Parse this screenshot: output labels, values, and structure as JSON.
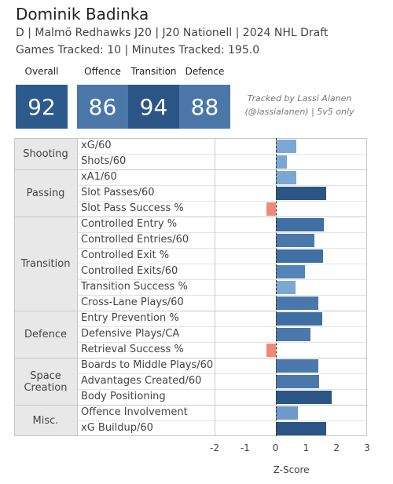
{
  "header": {
    "title": "Dominik Badinka",
    "subtitle": "D | Malmö Redhawks J20 | J20 Nationell | 2024 NHL Draft",
    "tracking": "Games Tracked: 10 | Minutes Tracked: 195.0"
  },
  "scores": [
    {
      "label": "Overall",
      "value": "92",
      "color": "#2d5a8c"
    },
    {
      "label": "Offence",
      "value": "86",
      "color": "#4a77a8"
    },
    {
      "label": "Transition",
      "value": "94",
      "color": "#2a5585"
    },
    {
      "label": "Defence",
      "value": "88",
      "color": "#4a77a8"
    }
  ],
  "note": [
    "Tracked by Lassi Alanen",
    "(@lassialanen) | 5v5 only"
  ],
  "chart_data": {
    "type": "bar",
    "orientation": "horizontal",
    "xlabel": "Z-Score",
    "xlim": [
      -2,
      3
    ],
    "xticks": [
      -2,
      -1,
      0,
      1,
      2,
      3
    ],
    "grid": false,
    "groups": [
      {
        "label": "Shooting",
        "categories": [
          "xG/60",
          "Shots/60"
        ],
        "values": [
          0.68,
          0.37
        ],
        "colors": [
          "#7ba7d4",
          "#7ba7d4"
        ]
      },
      {
        "label": "Passing",
        "categories": [
          "xA1/60",
          "Slot Passes/60",
          "Slot Pass Success %"
        ],
        "values": [
          0.68,
          1.65,
          -0.3
        ],
        "colors": [
          "#7ba7d4",
          "#2a5585",
          "#f08a77"
        ]
      },
      {
        "label": "Transition",
        "categories": [
          "Controlled Entry %",
          "Controlled Entries/60",
          "Controlled Exit %",
          "Controlled Exits/60",
          "Transition Success %",
          "Cross-Lane Plays/60"
        ],
        "values": [
          1.57,
          1.28,
          1.55,
          0.97,
          0.65,
          1.39
        ],
        "colors": [
          "#3f6fa3",
          "#4a78ab",
          "#3f6fa3",
          "#5585b8",
          "#7ba7d4",
          "#4a78ab"
        ]
      },
      {
        "label": "Defence",
        "categories": [
          "Entry Prevention %",
          "Defensive Plays/CA",
          "Retrieval Success %"
        ],
        "values": [
          1.52,
          1.15,
          -0.3
        ],
        "colors": [
          "#3f6fa3",
          "#4a78ab",
          "#f08a77"
        ]
      },
      {
        "label": "Space Creation",
        "categories": [
          "Boards to Middle Plays/60",
          "Advantages Created/60",
          "Body Positioning"
        ],
        "values": [
          1.39,
          1.44,
          1.83
        ],
        "colors": [
          "#4a78ab",
          "#4a78ab",
          "#2a5585"
        ]
      },
      {
        "label": "Misc.",
        "categories": [
          "Offence Involvement",
          "xG Buildup/60"
        ],
        "values": [
          0.73,
          1.65
        ],
        "colors": [
          "#6c9acb",
          "#2a5585"
        ]
      }
    ]
  }
}
